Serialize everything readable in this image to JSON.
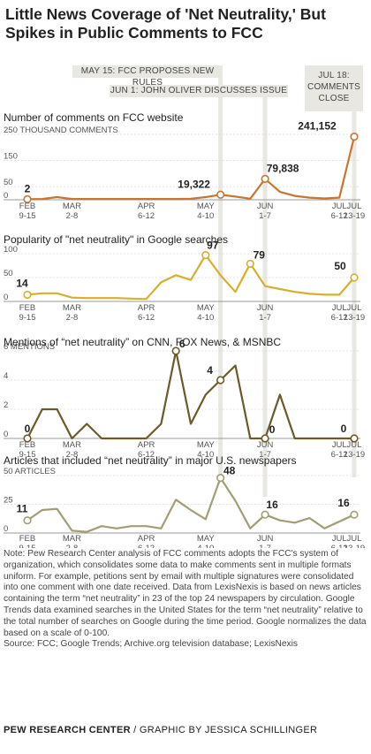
{
  "title": "Little News Coverage of 'Net Neutrality,' But Spikes in Public Comments to FCC",
  "annotations": [
    {
      "id": "fcc",
      "text": "MAY 15: FCC PROPOSES NEW RULES",
      "x_index": 13
    },
    {
      "id": "oliver",
      "text": "JUN 1: JOHN OLIVER DISCUSSES ISSUE",
      "x_index": 16
    },
    {
      "id": "close",
      "text": "JUL 18: COMMENTS CLOSE",
      "x_index": 22
    }
  ],
  "x_tick_labels": [
    {
      "index": 0,
      "lines": [
        "FEB",
        "9-15"
      ]
    },
    {
      "index": 3,
      "lines": [
        "MAR",
        "2-8"
      ]
    },
    {
      "index": 8,
      "lines": [
        "APR",
        "6-12"
      ]
    },
    {
      "index": 12,
      "lines": [
        "MAY",
        "4-10"
      ]
    },
    {
      "index": 16,
      "lines": [
        "JUN",
        "1-7"
      ]
    },
    {
      "index": 21,
      "lines": [
        "JUL",
        "6-12"
      ]
    },
    {
      "index": 22,
      "lines": [
        "JUL",
        "13-19"
      ]
    }
  ],
  "chart_data": [
    {
      "type": "line",
      "title": "Number of comments on FCC website",
      "ylabel": "250 THOUSAND COMMENTS",
      "y_ticks": [
        {
          "value": 250,
          "label": "250 THOUSAND COMMENTS"
        },
        {
          "value": 150,
          "label": "150"
        },
        {
          "value": 50,
          "label": "50"
        },
        {
          "value": 0,
          "label": "0"
        }
      ],
      "ylim": [
        0,
        250
      ],
      "color": "#c8752f",
      "values": [
        2,
        3,
        10,
        3,
        3,
        3,
        3,
        3,
        3,
        3,
        3,
        4,
        10,
        19.3,
        12,
        4,
        79.8,
        30,
        15,
        8,
        5,
        8,
        241.2
      ],
      "data_labels": [
        {
          "index": 0,
          "text": "2"
        },
        {
          "index": 13,
          "text": "19,322"
        },
        {
          "index": 16,
          "text": "79,838"
        },
        {
          "index": 22,
          "text": "241,152"
        }
      ]
    },
    {
      "type": "line",
      "title": "Popularity of \"net neutrality\" in Google searches",
      "ylabel": "",
      "y_ticks": [
        {
          "value": 100,
          "label": "100"
        },
        {
          "value": 50,
          "label": "50"
        },
        {
          "value": 0,
          "label": "0"
        }
      ],
      "ylim": [
        0,
        100
      ],
      "color": "#d7af2e",
      "values": [
        14,
        17,
        17,
        8,
        7,
        7,
        7,
        6,
        5,
        40,
        55,
        45,
        97,
        55,
        20,
        79,
        32,
        26,
        20,
        16,
        14,
        14,
        50
      ],
      "data_labels": [
        {
          "index": 0,
          "text": "14"
        },
        {
          "index": 12,
          "text": "97"
        },
        {
          "index": 15,
          "text": "79"
        },
        {
          "index": 22,
          "text": "50"
        }
      ]
    },
    {
      "type": "line",
      "title": "Mentions of “net neutrality” on CNN, FOX News, & MSNBC",
      "ylabel": "6 MENTIONS",
      "y_ticks": [
        {
          "value": 6,
          "label": "6 MENTIONS"
        },
        {
          "value": 4,
          "label": "4"
        },
        {
          "value": 2,
          "label": "2"
        },
        {
          "value": 0,
          "label": "0"
        }
      ],
      "ylim": [
        0,
        6
      ],
      "color": "#6b5a2a",
      "values": [
        0,
        2,
        2,
        0,
        1,
        0,
        0,
        0,
        0,
        1,
        6,
        1,
        3,
        4,
        5,
        0,
        0,
        3,
        0,
        0,
        0,
        0,
        0
      ],
      "data_labels": [
        {
          "index": 0,
          "text": "0"
        },
        {
          "index": 10,
          "text": "6"
        },
        {
          "index": 13,
          "text": "4"
        },
        {
          "index": 16,
          "text": "0"
        },
        {
          "index": 22,
          "text": "0"
        }
      ]
    },
    {
      "type": "line",
      "title": "Articles that included “net neutrality” in major U.S. newspapers",
      "ylabel": "50 ARTICLES",
      "y_ticks": [
        {
          "value": 50,
          "label": "50 ARTICLES"
        },
        {
          "value": 25,
          "label": "25"
        },
        {
          "value": 0,
          "label": "0"
        }
      ],
      "ylim": [
        0,
        50
      ],
      "color": "#a39d75",
      "values": [
        11,
        20,
        21,
        2,
        1,
        6,
        4,
        6,
        6,
        4,
        29,
        20,
        12,
        48,
        28,
        4,
        16,
        11,
        9,
        13,
        4,
        10,
        16
      ],
      "data_labels": [
        {
          "index": 0,
          "text": "11"
        },
        {
          "index": 13,
          "text": "48"
        },
        {
          "index": 16,
          "text": "16"
        },
        {
          "index": 22,
          "text": "16"
        }
      ]
    }
  ],
  "note": "Note: Pew Research Center analysis of FCC comments adopts the FCC's system of organization, which consolidates some data to make comments sent in multiple formats uniform. For example, petitions sent by email with multiple signatures were consolidated into one comment with one date received. Data from LexisNexis is based on news articles containing the term “net neutrality” in 23 of the top 24 newspapers by circulation. Google Trends data examined searches in the United States for the term “net neutrality” relative to the total number of searches on Google during the time period. Google normalizes the data based on a scale of 0-100.",
  "source": "Source: FCC; Google Trends; Archive.org television database; LexisNexis",
  "footer_org": "PEW RESEARCH CENTER",
  "footer_credit": " / GRAPHIC BY JESSICA SCHILLINGER"
}
